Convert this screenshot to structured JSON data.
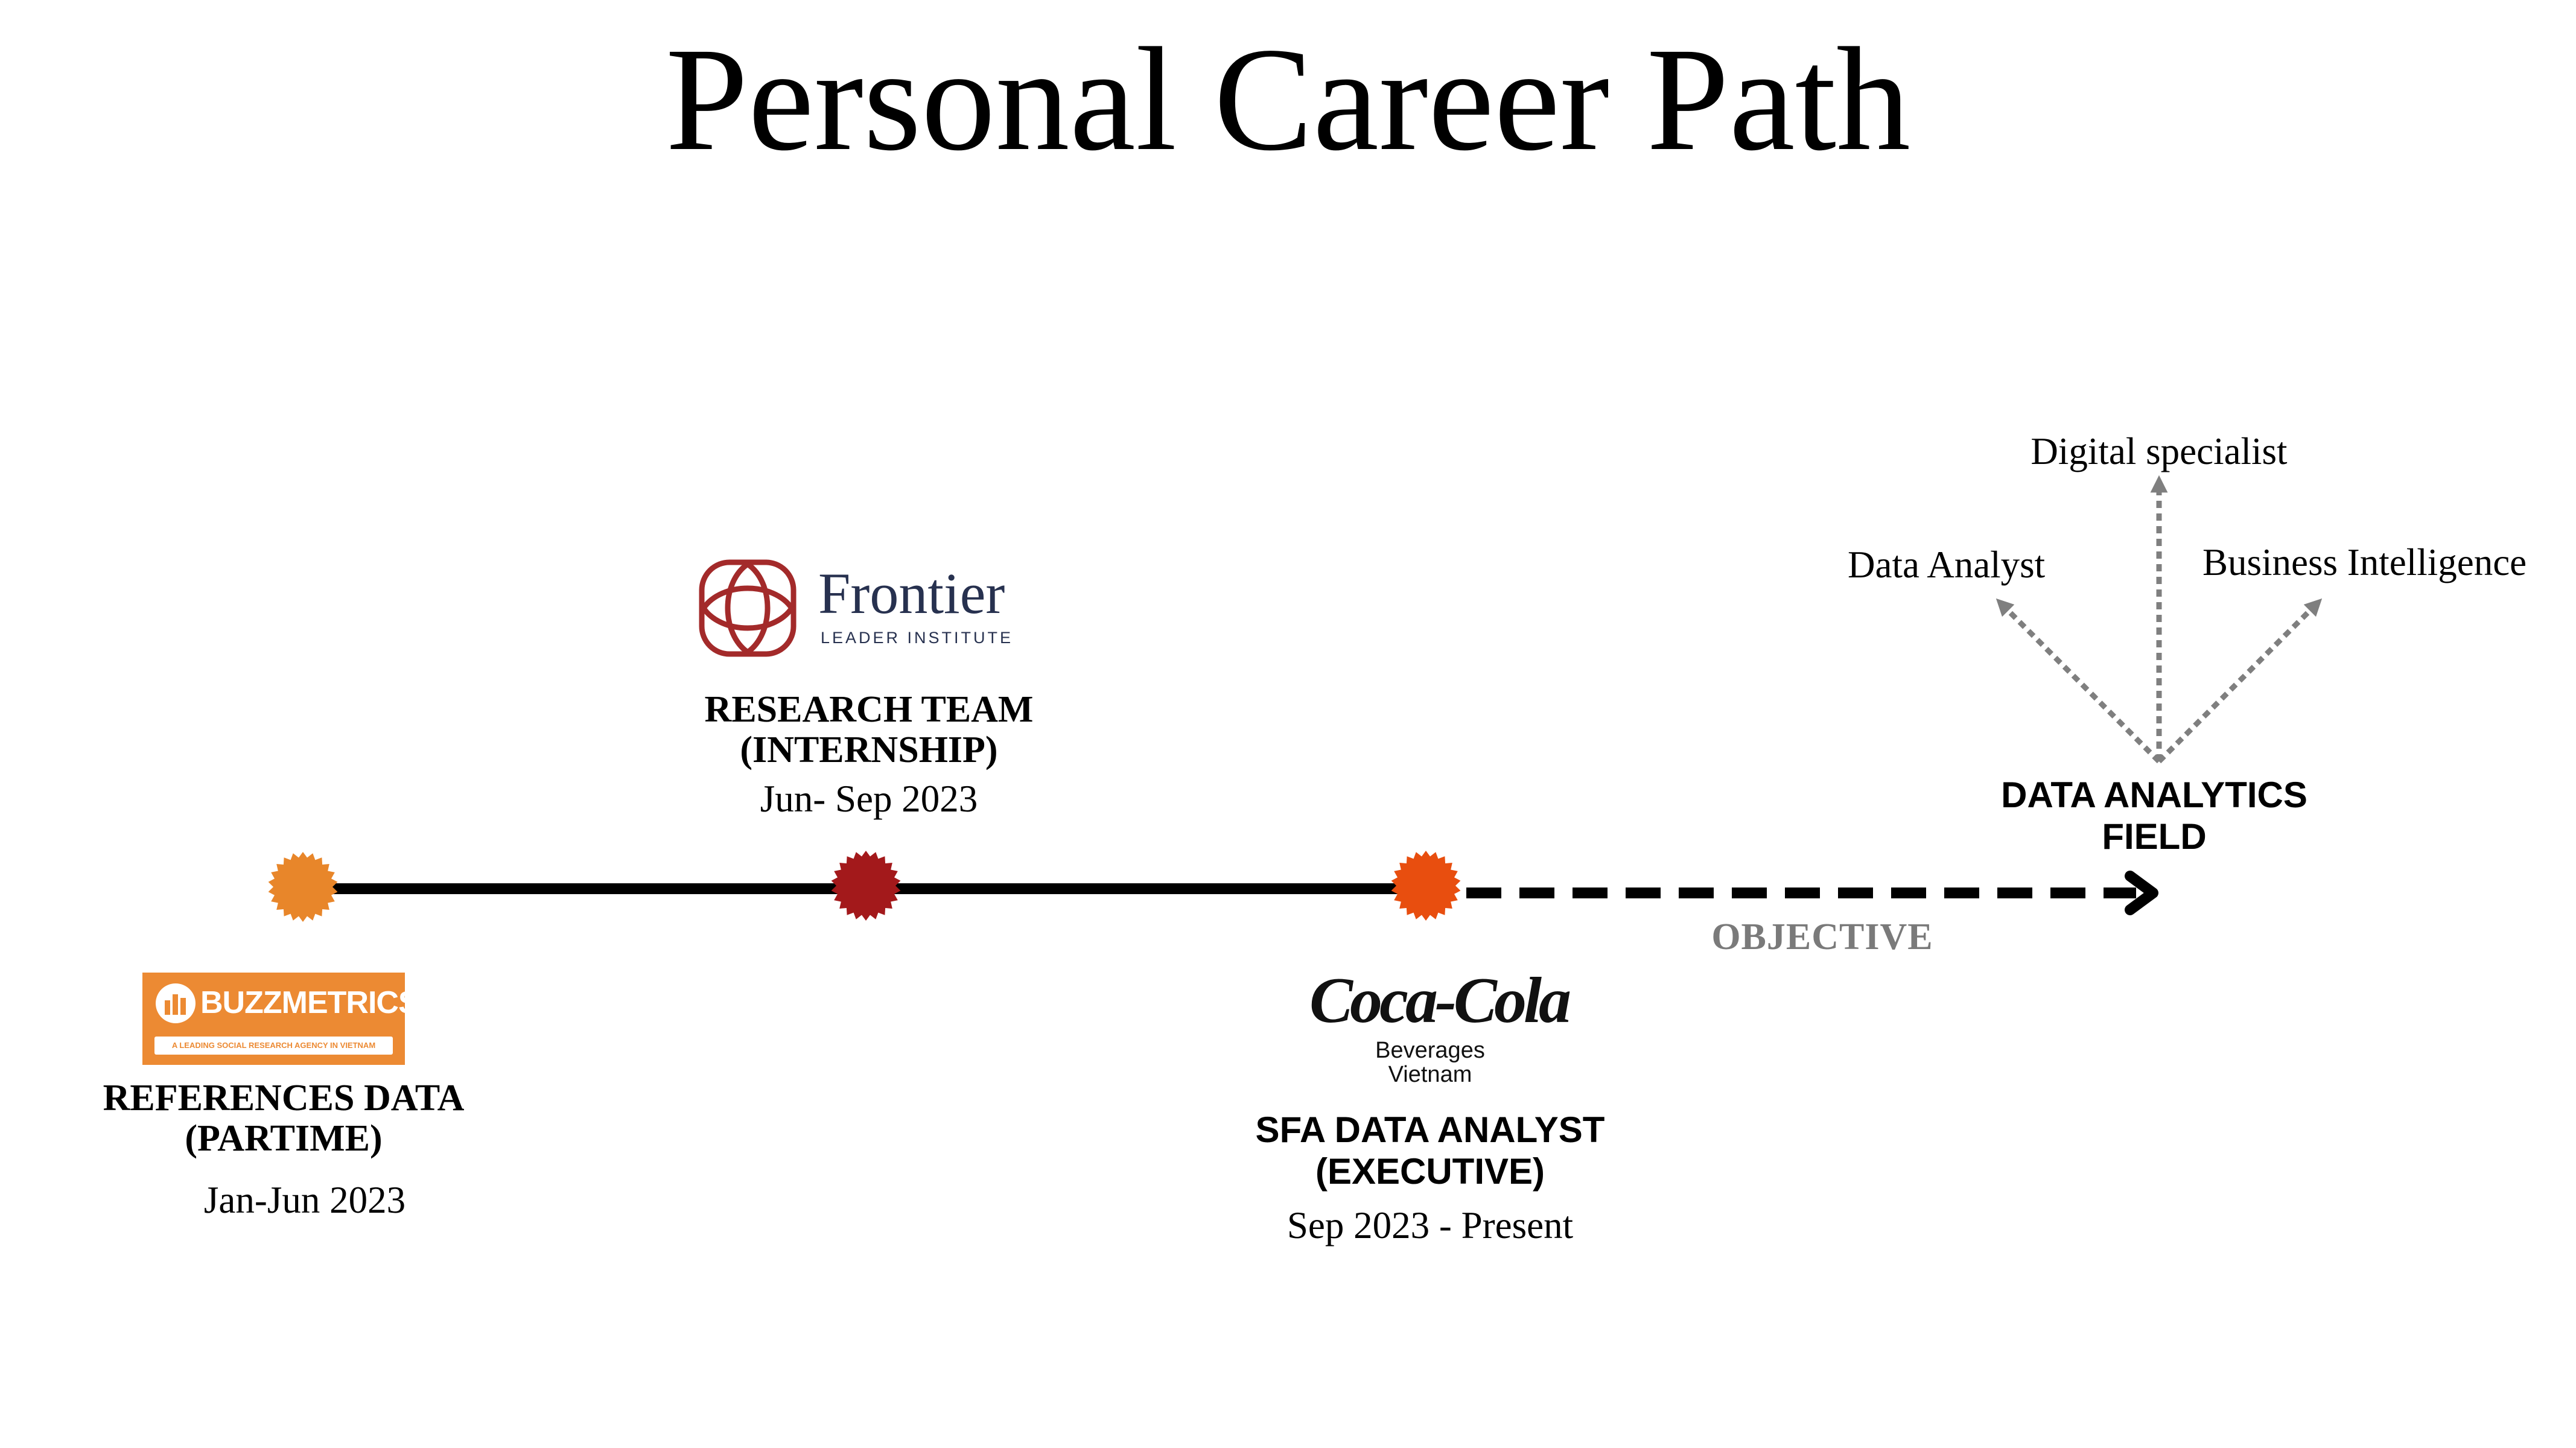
{
  "title": "Personal Career Path",
  "colors": {
    "milestone_1": "#e8862a",
    "milestone_2": "#a3191b",
    "milestone_3": "#e84e0f",
    "timeline": "#000000",
    "branch_arrows": "#7f7f7f",
    "buzzmetrics_brand": "#ec8a33",
    "frontier_brand": "#a32a2a"
  },
  "milestones": [
    {
      "logo": {
        "name": "BUZZMETRICS",
        "tagline": "A LEADING SOCIAL RESEARCH AGENCY IN VIETNAM"
      },
      "role_line1": "REFERENCES DATA",
      "role_line2": "(PARTIME)",
      "date": "Jan-Jun 2023"
    },
    {
      "logo": {
        "name": "Frontier",
        "tagline": "LEADER INSTITUTE"
      },
      "role_line1": "RESEARCH TEAM",
      "role_line2": "(INTERNSHIP)",
      "date": "Jun- Sep 2023"
    },
    {
      "logo": {
        "name": "Coca-Cola",
        "tagline_line1": "Beverages",
        "tagline_line2": "Vietnam"
      },
      "role_line1": "SFA DATA ANALYST",
      "role_line2": "(EXECUTIVE)",
      "date": "Sep 2023 - Present"
    }
  ],
  "objective": {
    "label": "OBJECTIVE",
    "target_line1": "DATA ANALYTICS",
    "target_line2": "FIELD",
    "branches": [
      "Data Analyst",
      "Digital specialist",
      "Business Intelligence"
    ]
  }
}
